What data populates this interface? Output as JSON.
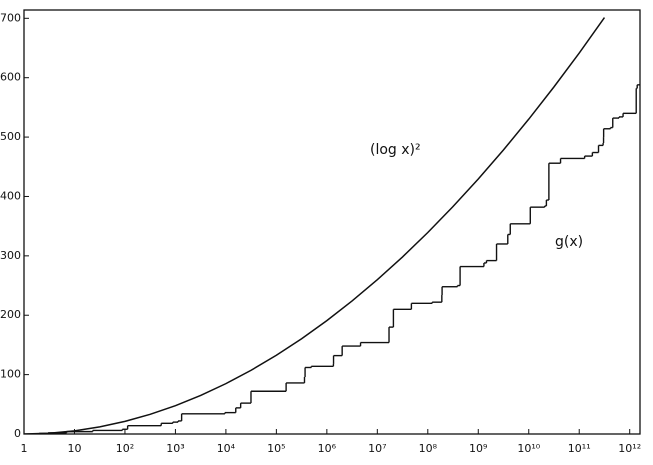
{
  "chart_data": {
    "type": "line",
    "log_x": true,
    "xlim": [
      1,
      1600000000000.0
    ],
    "ylim": [
      0,
      714
    ],
    "xticks": [
      {
        "value": 1,
        "label": "1"
      },
      {
        "value": 10,
        "label": "10"
      },
      {
        "value": 100,
        "label": "10²"
      },
      {
        "value": 1000,
        "label": "10³"
      },
      {
        "value": 10000,
        "label": "10⁴"
      },
      {
        "value": 100000,
        "label": "10⁵"
      },
      {
        "value": 1000000,
        "label": "10⁶"
      },
      {
        "value": 10000000,
        "label": "10⁷"
      },
      {
        "value": 100000000,
        "label": "10⁸"
      },
      {
        "value": 1000000000,
        "label": "10⁹"
      },
      {
        "value": 10000000000,
        "label": "10¹⁰"
      },
      {
        "value": 100000000000,
        "label": "10¹¹"
      },
      {
        "value": 1000000000000,
        "label": "10¹²"
      }
    ],
    "yticks": [
      0,
      100,
      200,
      300,
      400,
      500,
      600,
      700
    ],
    "annotations": [
      "(log x)²",
      "g(x)"
    ],
    "series": [
      {
        "name": "(log x)²",
        "color": "#111111",
        "style": "curve",
        "x": [
          1,
          3.162,
          10,
          31.62,
          100,
          316.2,
          1000,
          3162,
          10000.0,
          31620.0,
          100000.0,
          316200.0,
          1000000.0,
          3162000.0,
          10000000.0,
          31620000.0,
          100000000.0,
          316200000.0,
          1000000000.0,
          3162000000.0,
          10000000000.0,
          31620000000.0,
          100000000000.0,
          316200000000.0
        ],
        "values": [
          0,
          1.33,
          5.3,
          11.93,
          21.21,
          33.14,
          47.72,
          64.95,
          84.83,
          107.36,
          132.55,
          160.38,
          190.87,
          224.01,
          259.79,
          298.23,
          339.32,
          383.06,
          429.45,
          478.5,
          530.19,
          584.53,
          641.53,
          701.18
        ]
      },
      {
        "name": "g(x)",
        "color": "#111111",
        "style": "step",
        "x": [
          2,
          3,
          7,
          23,
          89,
          113,
          523,
          887,
          1129,
          1327,
          9551,
          15683,
          19609,
          31397,
          155921,
          360653,
          370261,
          492113,
          1349533,
          1357201,
          2010733,
          4652353,
          17051707,
          20831323,
          47326693,
          122164747,
          189695659,
          191912783,
          387096133,
          436273009,
          1294268491,
          1453168141,
          2300942549,
          3842610773,
          4302407359,
          10726904659,
          20678048297,
          22367084959,
          25056082087,
          42652618343,
          127976334671,
          182226896239,
          241160624143,
          297501075799,
          303371455241,
          304599508537,
          416608695821,
          461690510011,
          614487453523,
          738832927927,
          1346294310749,
          1408695493609
        ],
        "values": [
          1,
          2,
          4,
          6,
          8,
          14,
          18,
          20,
          22,
          34,
          36,
          44,
          52,
          72,
          86,
          96,
          112,
          114,
          118,
          132,
          148,
          154,
          180,
          210,
          220,
          222,
          234,
          248,
          250,
          282,
          288,
          292,
          320,
          336,
          354,
          382,
          384,
          394,
          456,
          464,
          468,
          474,
          486,
          490,
          500,
          514,
          516,
          532,
          534,
          540,
          582,
          588
        ]
      }
    ]
  }
}
